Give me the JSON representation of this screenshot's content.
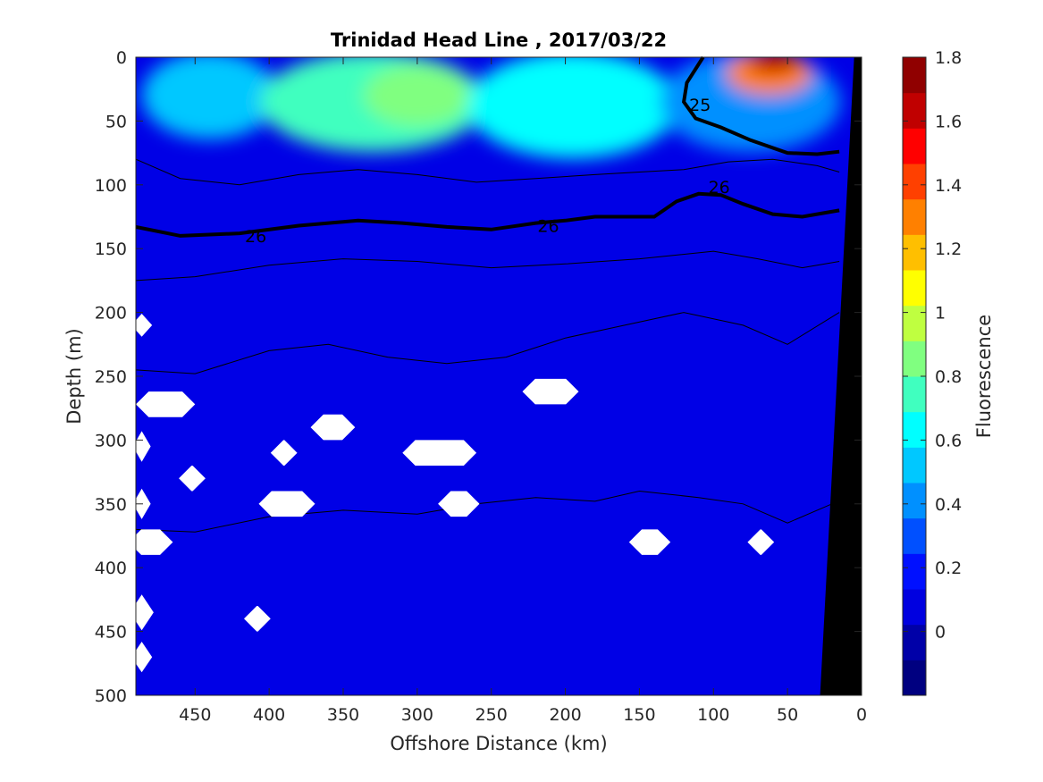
{
  "chart_data": {
    "type": "heatmap",
    "title": "Trinidad Head Line , 2017/03/22",
    "xlabel": "Offshore Distance (km)",
    "ylabel": "Depth (m)",
    "colorbar_label": "Fluorescence",
    "xlim": [
      490,
      0
    ],
    "ylim": [
      0,
      500
    ],
    "x_ticks": [
      "450",
      "400",
      "350",
      "300",
      "250",
      "200",
      "150",
      "100",
      "50",
      "0"
    ],
    "y_ticks": [
      "0",
      "50",
      "100",
      "150",
      "200",
      "250",
      "300",
      "350",
      "400",
      "450",
      "500"
    ],
    "colorbar_ticks": [
      "0",
      "0.2",
      "0.4",
      "0.6",
      "0.8",
      "1",
      "1.2",
      "1.4",
      "1.6",
      "1.8"
    ],
    "colorbar_range": [
      -0.2,
      1.8
    ],
    "colorbar_colors": [
      "#000080",
      "#0000a8",
      "#0000e0",
      "#0010ff",
      "#0050ff",
      "#0090ff",
      "#00c8ff",
      "#00ffff",
      "#40ffbf",
      "#80ff80",
      "#bfff40",
      "#ffff00",
      "#ffbf00",
      "#ff8000",
      "#ff4000",
      "#ff0000",
      "#c00000",
      "#900000"
    ],
    "background_value_color": "#0000e6",
    "surface_layer": [
      {
        "x": [
          480,
          400
        ],
        "depth": [
          0,
          60
        ],
        "value": 0.5
      },
      {
        "x": [
          400,
          260
        ],
        "depth": [
          0,
          70
        ],
        "value": 0.75
      },
      {
        "x": [
          330,
          270
        ],
        "depth": [
          10,
          50
        ],
        "value": 0.9
      },
      {
        "x": [
          260,
          130
        ],
        "depth": [
          0,
          75
        ],
        "value": 0.6
      },
      {
        "x": [
          130,
          20
        ],
        "depth": [
          0,
          70
        ],
        "value": 0.45
      },
      {
        "x": [
          85,
          40
        ],
        "depth": [
          0,
          25
        ],
        "value": 1.3
      },
      {
        "x": [
          70,
          50
        ],
        "depth": [
          0,
          8
        ],
        "value": 1.6
      }
    ],
    "contours": [
      {
        "label": "25",
        "emphasized": true,
        "x": [
          107,
          118,
          120,
          112,
          95,
          75,
          50,
          30,
          15
        ],
        "depth": [
          0,
          20,
          35,
          48,
          55,
          65,
          75,
          76,
          74
        ]
      },
      {
        "label": "26",
        "emphasized": true,
        "x": [
          490,
          460,
          420,
          380,
          340,
          310,
          280,
          250,
          220,
          200,
          180,
          160,
          140,
          125,
          110,
          95,
          80,
          60,
          40,
          15
        ],
        "depth": [
          133,
          140,
          138,
          132,
          128,
          130,
          133,
          135,
          130,
          128,
          125,
          125,
          125,
          113,
          107,
          108,
          115,
          123,
          125,
          120
        ]
      },
      {
        "label": "",
        "emphasized": false,
        "x": [
          490,
          460,
          420,
          380,
          340,
          300,
          260,
          220,
          180,
          150,
          120,
          90,
          60,
          30,
          15
        ],
        "depth": [
          80,
          95,
          100,
          92,
          88,
          92,
          98,
          95,
          92,
          90,
          88,
          82,
          80,
          85,
          90
        ]
      },
      {
        "label": "",
        "emphasized": false,
        "x": [
          490,
          450,
          400,
          350,
          300,
          250,
          200,
          150,
          100,
          70,
          40,
          15
        ],
        "depth": [
          175,
          172,
          163,
          158,
          160,
          165,
          162,
          158,
          152,
          158,
          165,
          160
        ]
      },
      {
        "label": "",
        "emphasized": false,
        "x": [
          490,
          450,
          400,
          360,
          320,
          280,
          240,
          200,
          160,
          120,
          80,
          50,
          15
        ],
        "depth": [
          245,
          248,
          230,
          225,
          235,
          240,
          235,
          220,
          210,
          200,
          210,
          225,
          200
        ]
      },
      {
        "label": "",
        "emphasized": false,
        "x": [
          490,
          450,
          400,
          350,
          300,
          260,
          220,
          180,
          150,
          110,
          80,
          50,
          20
        ],
        "depth": [
          370,
          372,
          360,
          355,
          358,
          350,
          345,
          348,
          340,
          345,
          350,
          365,
          350
        ]
      }
    ],
    "missing_data_regions": [
      {
        "x_center": 470,
        "depth_center": 272,
        "x_halfwidth": 20,
        "depth_halfwidth": 10
      },
      {
        "x_center": 357,
        "depth_center": 290,
        "x_halfwidth": 15,
        "depth_halfwidth": 10
      },
      {
        "x_center": 390,
        "depth_center": 310,
        "x_halfwidth": 9,
        "depth_halfwidth": 10
      },
      {
        "x_center": 452,
        "depth_center": 330,
        "x_halfwidth": 9,
        "depth_halfwidth": 10
      },
      {
        "x_center": 388,
        "depth_center": 350,
        "x_halfwidth": 19,
        "depth_halfwidth": 10
      },
      {
        "x_center": 285,
        "depth_center": 310,
        "x_halfwidth": 25,
        "depth_halfwidth": 10
      },
      {
        "x_center": 272,
        "depth_center": 350,
        "x_halfwidth": 14,
        "depth_halfwidth": 10
      },
      {
        "x_center": 210,
        "depth_center": 262,
        "x_halfwidth": 19,
        "depth_halfwidth": 10
      },
      {
        "x_center": 143,
        "depth_center": 380,
        "x_halfwidth": 14,
        "depth_halfwidth": 10
      },
      {
        "x_center": 68,
        "depth_center": 380,
        "x_halfwidth": 9,
        "depth_halfwidth": 10
      },
      {
        "x_center": 408,
        "depth_center": 440,
        "x_halfwidth": 9,
        "depth_halfwidth": 10
      },
      {
        "x_center": 480,
        "depth_center": 380,
        "x_halfwidth": 15,
        "depth_halfwidth": 10
      },
      {
        "x_center": 486,
        "depth_center": 210,
        "x_halfwidth": 7,
        "depth_halfwidth": 9
      },
      {
        "x_center": 486,
        "depth_center": 305,
        "x_halfwidth": 6,
        "depth_halfwidth": 12
      },
      {
        "x_center": 486,
        "depth_center": 350,
        "x_halfwidth": 6,
        "depth_halfwidth": 12
      },
      {
        "x_center": 486,
        "depth_center": 435,
        "x_halfwidth": 8,
        "depth_halfwidth": 14
      },
      {
        "x_center": 486,
        "depth_center": 470,
        "x_halfwidth": 7,
        "depth_halfwidth": 12
      }
    ],
    "bathymetry": {
      "x": [
        0,
        0,
        25,
        28,
        5
      ],
      "depth": [
        500,
        0,
        500,
        500,
        0
      ]
    }
  }
}
